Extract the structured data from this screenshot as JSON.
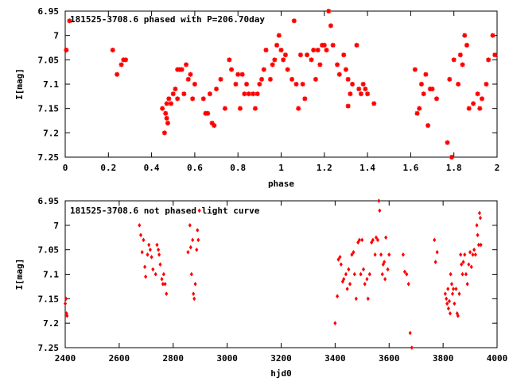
{
  "chart_data": [
    {
      "type": "scatter",
      "title": "181525-3708.6 phased with P=206.70day",
      "xlabel": "phase",
      "ylabel": "I[mag]",
      "xlim": [
        0,
        2
      ],
      "ylim": [
        6.95,
        7.25
      ],
      "y_inverted": true,
      "x_ticks": [
        0,
        0.2,
        0.4,
        0.6,
        0.8,
        1,
        1.2,
        1.4,
        1.6,
        1.8,
        2
      ],
      "x_tick_labels": [
        "0",
        "0.2",
        "0.4",
        "0.6",
        "0.8",
        "1",
        "1.2",
        "1.4",
        "1.6",
        "1.8",
        "2"
      ],
      "y_ticks": [
        6.95,
        7,
        7.05,
        7.1,
        7.15,
        7.2,
        7.25
      ],
      "y_tick_labels": [
        "6.95",
        "7",
        "7.05",
        "7.1",
        "7.15",
        "7.2",
        "7.25"
      ],
      "marker_color": "#ff0000",
      "marker": "star",
      "grid": false,
      "points": [
        [
          0.02,
          6.97
        ],
        [
          0.005,
          7.03
        ],
        [
          0.22,
          7.03
        ],
        [
          0.24,
          7.08
        ],
        [
          0.26,
          7.06
        ],
        [
          0.27,
          7.05
        ],
        [
          0.28,
          7.05
        ],
        [
          0.45,
          7.15
        ],
        [
          0.46,
          7.2
        ],
        [
          0.465,
          7.16
        ],
        [
          0.47,
          7.14
        ],
        [
          0.47,
          7.17
        ],
        [
          0.475,
          7.18
        ],
        [
          0.48,
          7.13
        ],
        [
          0.49,
          7.14
        ],
        [
          0.5,
          7.12
        ],
        [
          0.51,
          7.11
        ],
        [
          0.52,
          7.13
        ],
        [
          0.52,
          7.07
        ],
        [
          0.53,
          7.07
        ],
        [
          0.54,
          7.07
        ],
        [
          0.55,
          7.12
        ],
        [
          0.56,
          7.06
        ],
        [
          0.57,
          7.09
        ],
        [
          0.58,
          7.08
        ],
        [
          0.59,
          7.13
        ],
        [
          0.6,
          7.1
        ],
        [
          0.64,
          7.13
        ],
        [
          0.65,
          7.16
        ],
        [
          0.66,
          7.16
        ],
        [
          0.67,
          7.12
        ],
        [
          0.68,
          7.18
        ],
        [
          0.69,
          7.185
        ],
        [
          0.7,
          7.11
        ],
        [
          0.72,
          7.09
        ],
        [
          0.74,
          7.15
        ],
        [
          0.76,
          7.05
        ],
        [
          0.77,
          7.07
        ],
        [
          0.79,
          7.1
        ],
        [
          0.8,
          7.08
        ],
        [
          0.81,
          7.15
        ],
        [
          0.82,
          7.08
        ],
        [
          0.83,
          7.12
        ],
        [
          0.84,
          7.1
        ],
        [
          0.85,
          7.12
        ],
        [
          0.87,
          7.12
        ],
        [
          0.88,
          7.15
        ],
        [
          0.89,
          7.12
        ],
        [
          0.9,
          7.1
        ],
        [
          0.91,
          7.09
        ],
        [
          0.92,
          7.07
        ],
        [
          0.93,
          7.03
        ],
        [
          0.95,
          7.09
        ],
        [
          0.96,
          7.06
        ],
        [
          0.97,
          7.05
        ],
        [
          0.98,
          7.02
        ],
        [
          0.99,
          7.0
        ],
        [
          1.0,
          7.03
        ],
        [
          1.01,
          7.05
        ],
        [
          1.02,
          7.04
        ],
        [
          1.03,
          7.07
        ],
        [
          1.05,
          7.09
        ],
        [
          1.06,
          6.97
        ],
        [
          1.07,
          7.1
        ],
        [
          1.08,
          7.15
        ],
        [
          1.09,
          7.04
        ],
        [
          1.1,
          7.1
        ],
        [
          1.11,
          7.13
        ],
        [
          1.12,
          7.04
        ],
        [
          1.14,
          7.05
        ],
        [
          1.15,
          7.03
        ],
        [
          1.16,
          7.09
        ],
        [
          1.17,
          7.03
        ],
        [
          1.18,
          7.06
        ],
        [
          1.19,
          7.02
        ],
        [
          1.2,
          7.02
        ],
        [
          1.21,
          7.03
        ],
        [
          1.22,
          6.95
        ],
        [
          1.23,
          6.98
        ],
        [
          1.24,
          7.02
        ],
        [
          1.26,
          7.06
        ],
        [
          1.27,
          7.08
        ],
        [
          1.29,
          7.04
        ],
        [
          1.3,
          7.07
        ],
        [
          1.31,
          7.09
        ],
        [
          1.32,
          7.12
        ],
        [
          1.31,
          7.145
        ],
        [
          1.33,
          7.1
        ],
        [
          1.35,
          7.02
        ],
        [
          1.36,
          7.11
        ],
        [
          1.37,
          7.12
        ],
        [
          1.38,
          7.1
        ],
        [
          1.39,
          7.11
        ],
        [
          1.4,
          7.12
        ],
        [
          1.43,
          7.14
        ],
        [
          1.62,
          7.07
        ],
        [
          1.63,
          7.16
        ],
        [
          1.64,
          7.15
        ],
        [
          1.65,
          7.1
        ],
        [
          1.66,
          7.12
        ],
        [
          1.67,
          7.08
        ],
        [
          1.68,
          7.185
        ],
        [
          1.69,
          7.11
        ],
        [
          1.7,
          7.11
        ],
        [
          1.72,
          7.13
        ],
        [
          1.77,
          7.22
        ],
        [
          1.78,
          7.09
        ],
        [
          1.79,
          7.25
        ],
        [
          1.8,
          7.05
        ],
        [
          1.82,
          7.1
        ],
        [
          1.83,
          7.04
        ],
        [
          1.84,
          7.06
        ],
        [
          1.85,
          7.0
        ],
        [
          1.86,
          7.02
        ],
        [
          1.87,
          7.15
        ],
        [
          1.89,
          7.14
        ],
        [
          1.91,
          7.12
        ],
        [
          1.92,
          7.15
        ],
        [
          1.93,
          7.13
        ],
        [
          1.95,
          7.1
        ],
        [
          1.96,
          7.05
        ],
        [
          1.98,
          7.0
        ],
        [
          1.99,
          7.04
        ]
      ]
    },
    {
      "type": "scatter",
      "title": "181525-3708.6 not phased light curve",
      "xlabel": "hjd0",
      "ylabel": "I[mag]",
      "xlim": [
        2400,
        4000
      ],
      "ylim": [
        6.95,
        7.25
      ],
      "y_inverted": true,
      "x_ticks": [
        2400,
        2600,
        2800,
        3000,
        3200,
        3400,
        3600,
        3800,
        4000
      ],
      "x_tick_labels": [
        "2400",
        "2600",
        "2800",
        "3000",
        "3200",
        "3400",
        "3600",
        "3800",
        "4000"
      ],
      "y_ticks": [
        6.95,
        7,
        7.05,
        7.1,
        7.15,
        7.2,
        7.25
      ],
      "y_tick_labels": [
        "6.95",
        "7",
        "7.05",
        "7.1",
        "7.15",
        "7.2",
        "7.25"
      ],
      "marker_color": "#ff0000",
      "marker": "diamond",
      "grid": false,
      "points": [
        [
          2400,
          7.16
        ],
        [
          2403,
          7.15
        ],
        [
          2405,
          7.18
        ],
        [
          2407,
          7.185
        ],
        [
          2675,
          7.0
        ],
        [
          2680,
          7.02
        ],
        [
          2685,
          7.055
        ],
        [
          2690,
          7.03
        ],
        [
          2695,
          7.085
        ],
        [
          2698,
          7.105
        ],
        [
          2705,
          7.06
        ],
        [
          2710,
          7.04
        ],
        [
          2715,
          7.05
        ],
        [
          2720,
          7.065
        ],
        [
          2725,
          7.09
        ],
        [
          2735,
          7.1
        ],
        [
          2740,
          7.04
        ],
        [
          2745,
          7.05
        ],
        [
          2748,
          7.06
        ],
        [
          2752,
          7.08
        ],
        [
          2758,
          7.11
        ],
        [
          2762,
          7.12
        ],
        [
          2765,
          7.1
        ],
        [
          2770,
          7.12
        ],
        [
          2775,
          7.14
        ],
        [
          2855,
          7.055
        ],
        [
          2862,
          7.0
        ],
        [
          2865,
          7.045
        ],
        [
          2868,
          7.1
        ],
        [
          2872,
          7.03
        ],
        [
          2875,
          7.14
        ],
        [
          2878,
          7.15
        ],
        [
          2882,
          7.12
        ],
        [
          2887,
          7.05
        ],
        [
          2890,
          7.01
        ],
        [
          2893,
          7.03
        ],
        [
          2897,
          6.97
        ],
        [
          3400,
          7.2
        ],
        [
          3408,
          7.145
        ],
        [
          3412,
          7.07
        ],
        [
          3418,
          7.065
        ],
        [
          3422,
          7.08
        ],
        [
          3428,
          7.115
        ],
        [
          3432,
          7.11
        ],
        [
          3440,
          7.1
        ],
        [
          3445,
          7.13
        ],
        [
          3450,
          7.09
        ],
        [
          3455,
          7.12
        ],
        [
          3462,
          7.06
        ],
        [
          3468,
          7.055
        ],
        [
          3472,
          7.1
        ],
        [
          3478,
          7.15
        ],
        [
          3485,
          7.035
        ],
        [
          3490,
          7.03
        ],
        [
          3495,
          7.1
        ],
        [
          3500,
          7.03
        ],
        [
          3505,
          7.09
        ],
        [
          3510,
          7.12
        ],
        [
          3518,
          7.11
        ],
        [
          3522,
          7.15
        ],
        [
          3528,
          7.1
        ],
        [
          3535,
          7.035
        ],
        [
          3540,
          7.03
        ],
        [
          3548,
          7.06
        ],
        [
          3552,
          7.025
        ],
        [
          3558,
          7.03
        ],
        [
          3562,
          6.95
        ],
        [
          3565,
          6.97
        ],
        [
          3570,
          7.06
        ],
        [
          3575,
          7.1
        ],
        [
          3578,
          7.08
        ],
        [
          3582,
          7.075
        ],
        [
          3585,
          7.11
        ],
        [
          3588,
          7.025
        ],
        [
          3595,
          7.09
        ],
        [
          3600,
          7.06
        ],
        [
          3652,
          7.06
        ],
        [
          3658,
          7.095
        ],
        [
          3665,
          7.1
        ],
        [
          3672,
          7.12
        ],
        [
          3678,
          7.22
        ],
        [
          3684,
          7.25
        ],
        [
          3768,
          7.03
        ],
        [
          3772,
          7.075
        ],
        [
          3778,
          7.055
        ],
        [
          3808,
          7.14
        ],
        [
          3812,
          7.15
        ],
        [
          3815,
          7.16
        ],
        [
          3818,
          7.13
        ],
        [
          3820,
          7.17
        ],
        [
          3823,
          7.155
        ],
        [
          3826,
          7.18
        ],
        [
          3828,
          7.1
        ],
        [
          3832,
          7.12
        ],
        [
          3835,
          7.14
        ],
        [
          3838,
          7.13
        ],
        [
          3842,
          7.16
        ],
        [
          3848,
          7.13
        ],
        [
          3852,
          7.18
        ],
        [
          3855,
          7.185
        ],
        [
          3860,
          7.14
        ],
        [
          3865,
          7.06
        ],
        [
          3868,
          7.08
        ],
        [
          3872,
          7.1
        ],
        [
          3875,
          7.075
        ],
        [
          3880,
          7.06
        ],
        [
          3885,
          7.1
        ],
        [
          3890,
          7.12
        ],
        [
          3895,
          7.08
        ],
        [
          3900,
          7.055
        ],
        [
          3905,
          7.085
        ],
        [
          3910,
          7.06
        ],
        [
          3915,
          7.05
        ],
        [
          3920,
          7.06
        ],
        [
          3925,
          7.0
        ],
        [
          3928,
          7.02
        ],
        [
          3932,
          7.04
        ],
        [
          3935,
          6.975
        ],
        [
          3938,
          6.985
        ],
        [
          3940,
          7.04
        ]
      ]
    }
  ]
}
